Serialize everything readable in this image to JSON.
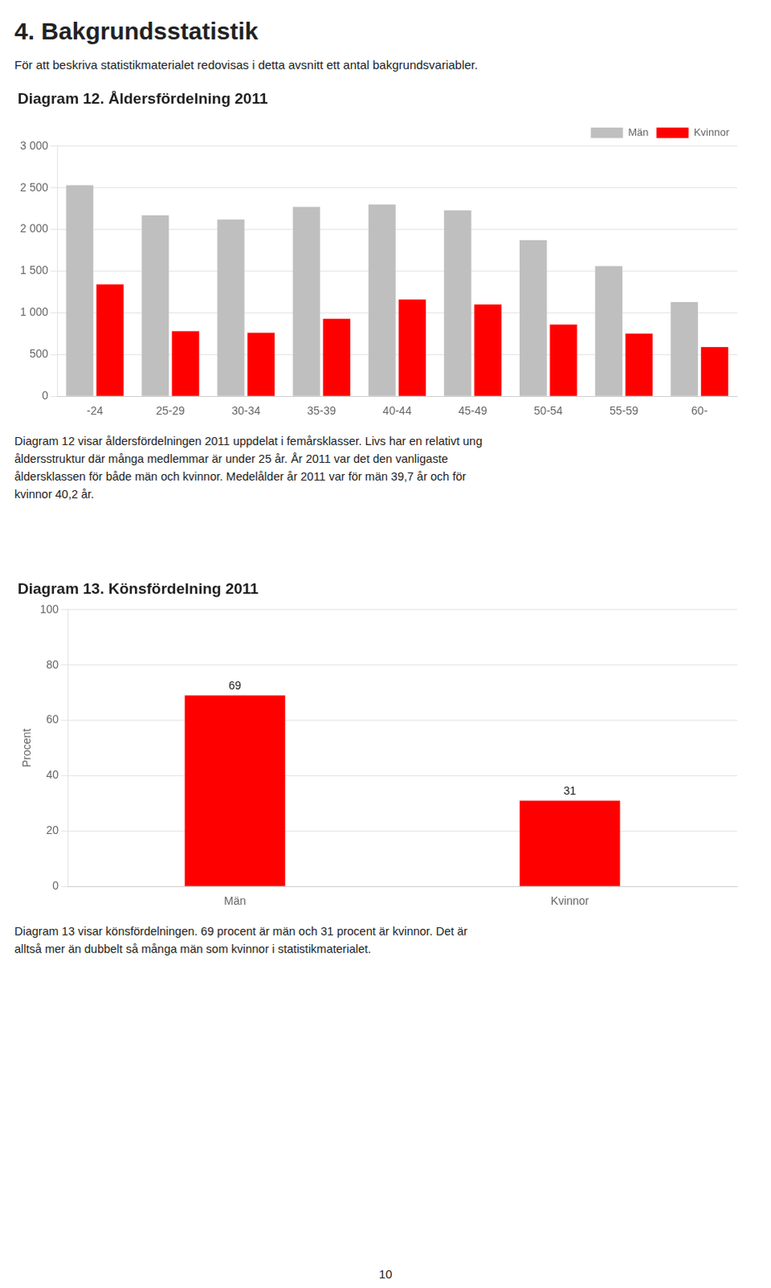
{
  "title": "4. Bakgrundsstatistik",
  "subtitle": "För att beskriva statistikmaterialet redovisas i detta avsnitt ett antal bakgrundsvariabler.",
  "annotations": [
    "10"
  ],
  "chart_data": [
    {
      "type": "bar",
      "title": "Diagram 12. Åldersfördelning 2011",
      "categories": [
        "-24",
        "25-29",
        "30-34",
        "35-39",
        "40-44",
        "45-49",
        "50-54",
        "55-59",
        "60-"
      ],
      "series": [
        {
          "name": "Män",
          "color": "#bfbfbf",
          "values": [
            2530,
            2170,
            2120,
            2270,
            2300,
            2230,
            1870,
            1560,
            1130
          ]
        },
        {
          "name": "Kvinnor",
          "color": "#ff0000",
          "values": [
            1340,
            780,
            760,
            930,
            1160,
            1100,
            860,
            750,
            590
          ]
        }
      ],
      "ylim": [
        0,
        3000
      ],
      "yticks": [
        0,
        500,
        {
          "value": 1000,
          "label": "1 000"
        },
        {
          "value": 1500,
          "label": "1 500"
        },
        {
          "value": 2000,
          "label": "2 000"
        },
        {
          "value": 2500,
          "label": "2 500"
        },
        {
          "value": 3000,
          "label": "3 000"
        }
      ],
      "grid": true,
      "legend": "upper right",
      "annotations": [
        "Diagram 12 visar åldersfördelningen 2011 uppdelat i femårsklasser. Livs har en relativt ung",
        "åldersstruktur där många medlemmar är under 25 år. År 2011 var det den vanligaste",
        "åldersklassen för både män och kvinnor. Medelålder år 2011 var för män 39,7 år och för",
        "kvinnor 40,2 år."
      ]
    },
    {
      "type": "bar",
      "title": "Diagram 13. Könsfördelning 2011",
      "categories": [
        "Män",
        "Kvinnor"
      ],
      "values": [
        69,
        31
      ],
      "color": "#ff0000",
      "ylim": [
        0,
        100
      ],
      "yticks": [
        0,
        20,
        40,
        60,
        80,
        100
      ],
      "ylabel": "Procent",
      "grid": true,
      "data_labels": true,
      "annotations": [
        "Diagram 13 visar könsfördelningen. 69 procent är män och 31 procent är kvinnor. Det är",
        "alltså mer än dubbelt så många män som kvinnor i statistikmaterialet."
      ]
    }
  ]
}
